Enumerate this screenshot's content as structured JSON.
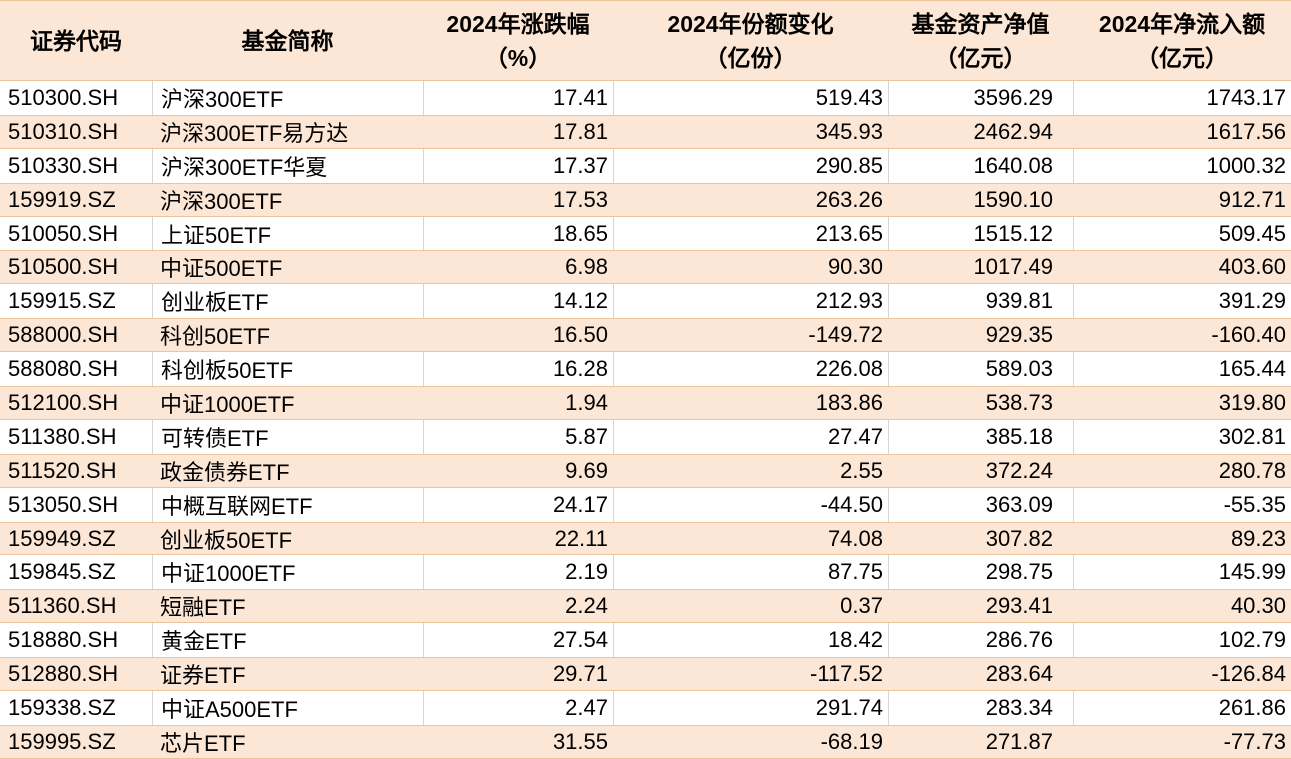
{
  "colors": {
    "row_alt_fill": "#fce6d5",
    "row_alt_border": "#edc59d",
    "grid_line": "#d6d6d6",
    "text": "#000000",
    "background": "#ffffff"
  },
  "table": {
    "columns": [
      {
        "id": "code",
        "title": "证券代码",
        "unit": "",
        "align": "left"
      },
      {
        "id": "name",
        "title": "基金简称",
        "unit": "",
        "align": "left"
      },
      {
        "id": "change",
        "title": "2024年涨跌幅",
        "unit": "（%）",
        "align": "right"
      },
      {
        "id": "share",
        "title": "2024年份额变化",
        "unit": "（亿份）",
        "align": "right"
      },
      {
        "id": "nav",
        "title": "基金资产净值",
        "unit": "（亿元）",
        "align": "right"
      },
      {
        "id": "inflow",
        "title": "2024年净流入额",
        "unit": "（亿元）",
        "align": "right"
      }
    ],
    "rows": [
      [
        "510300.SH",
        "沪深300ETF",
        "17.41",
        "519.43",
        "3596.29",
        "1743.17"
      ],
      [
        "510310.SH",
        "沪深300ETF易方达",
        "17.81",
        "345.93",
        "2462.94",
        "1617.56"
      ],
      [
        "510330.SH",
        "沪深300ETF华夏",
        "17.37",
        "290.85",
        "1640.08",
        "1000.32"
      ],
      [
        "159919.SZ",
        "沪深300ETF",
        "17.53",
        "263.26",
        "1590.10",
        "912.71"
      ],
      [
        "510050.SH",
        "上证50ETF",
        "18.65",
        "213.65",
        "1515.12",
        "509.45"
      ],
      [
        "510500.SH",
        "中证500ETF",
        "6.98",
        "90.30",
        "1017.49",
        "403.60"
      ],
      [
        "159915.SZ",
        "创业板ETF",
        "14.12",
        "212.93",
        "939.81",
        "391.29"
      ],
      [
        "588000.SH",
        "科创50ETF",
        "16.50",
        "-149.72",
        "929.35",
        "-160.40"
      ],
      [
        "588080.SH",
        "科创板50ETF",
        "16.28",
        "226.08",
        "589.03",
        "165.44"
      ],
      [
        "512100.SH",
        "中证1000ETF",
        "1.94",
        "183.86",
        "538.73",
        "319.80"
      ],
      [
        "511380.SH",
        "可转债ETF",
        "5.87",
        "27.47",
        "385.18",
        "302.81"
      ],
      [
        "511520.SH",
        "政金债券ETF",
        "9.69",
        "2.55",
        "372.24",
        "280.78"
      ],
      [
        "513050.SH",
        "中概互联网ETF",
        "24.17",
        "-44.50",
        "363.09",
        "-55.35"
      ],
      [
        "159949.SZ",
        "创业板50ETF",
        "22.11",
        "74.08",
        "307.82",
        "89.23"
      ],
      [
        "159845.SZ",
        "中证1000ETF",
        "2.19",
        "87.75",
        "298.75",
        "145.99"
      ],
      [
        "511360.SH",
        "短融ETF",
        "2.24",
        "0.37",
        "293.41",
        "40.30"
      ],
      [
        "518880.SH",
        "黄金ETF",
        "27.54",
        "18.42",
        "286.76",
        "102.79"
      ],
      [
        "512880.SH",
        "证券ETF",
        "29.71",
        "-117.52",
        "283.64",
        "-126.84"
      ],
      [
        "159338.SZ",
        "中证A500ETF",
        "2.47",
        "291.74",
        "283.34",
        "261.86"
      ],
      [
        "159995.SZ",
        "芯片ETF",
        "31.55",
        "-68.19",
        "271.87",
        "-77.73"
      ]
    ]
  },
  "chart_data": {
    "type": "table",
    "title": "",
    "columns": [
      "证券代码",
      "基金简称",
      "2024年涨跌幅（%）",
      "2024年份额变化（亿份）",
      "基金资产净值（亿元）",
      "2024年净流入额（亿元）"
    ],
    "rows": [
      [
        "510300.SH",
        "沪深300ETF",
        17.41,
        519.43,
        3596.29,
        1743.17
      ],
      [
        "510310.SH",
        "沪深300ETF易方达",
        17.81,
        345.93,
        2462.94,
        1617.56
      ],
      [
        "510330.SH",
        "沪深300ETF华夏",
        17.37,
        290.85,
        1640.08,
        1000.32
      ],
      [
        "159919.SZ",
        "沪深300ETF",
        17.53,
        263.26,
        1590.1,
        912.71
      ],
      [
        "510050.SH",
        "上证50ETF",
        18.65,
        213.65,
        1515.12,
        509.45
      ],
      [
        "510500.SH",
        "中证500ETF",
        6.98,
        90.3,
        1017.49,
        403.6
      ],
      [
        "159915.SZ",
        "创业板ETF",
        14.12,
        212.93,
        939.81,
        391.29
      ],
      [
        "588000.SH",
        "科创50ETF",
        16.5,
        -149.72,
        929.35,
        -160.4
      ],
      [
        "588080.SH",
        "科创板50ETF",
        16.28,
        226.08,
        589.03,
        165.44
      ],
      [
        "512100.SH",
        "中证1000ETF",
        1.94,
        183.86,
        538.73,
        319.8
      ],
      [
        "511380.SH",
        "可转债ETF",
        5.87,
        27.47,
        385.18,
        302.81
      ],
      [
        "511520.SH",
        "政金债券ETF",
        9.69,
        2.55,
        372.24,
        280.78
      ],
      [
        "513050.SH",
        "中概互联网ETF",
        24.17,
        -44.5,
        363.09,
        -55.35
      ],
      [
        "159949.SZ",
        "创业板50ETF",
        22.11,
        74.08,
        307.82,
        89.23
      ],
      [
        "159845.SZ",
        "中证1000ETF",
        2.19,
        87.75,
        298.75,
        145.99
      ],
      [
        "511360.SH",
        "短融ETF",
        2.24,
        0.37,
        293.41,
        40.3
      ],
      [
        "518880.SH",
        "黄金ETF",
        27.54,
        18.42,
        286.76,
        102.79
      ],
      [
        "512880.SH",
        "证券ETF",
        29.71,
        -117.52,
        283.64,
        -126.84
      ],
      [
        "159338.SZ",
        "中证A500ETF",
        2.47,
        291.74,
        283.34,
        261.86
      ],
      [
        "159995.SZ",
        "芯片ETF",
        31.55,
        -68.19,
        271.87,
        -77.73
      ]
    ],
    "layout": {
      "striped": true,
      "stripe_pattern": "even-rows-peach",
      "header_background": "#fce6d5"
    }
  }
}
